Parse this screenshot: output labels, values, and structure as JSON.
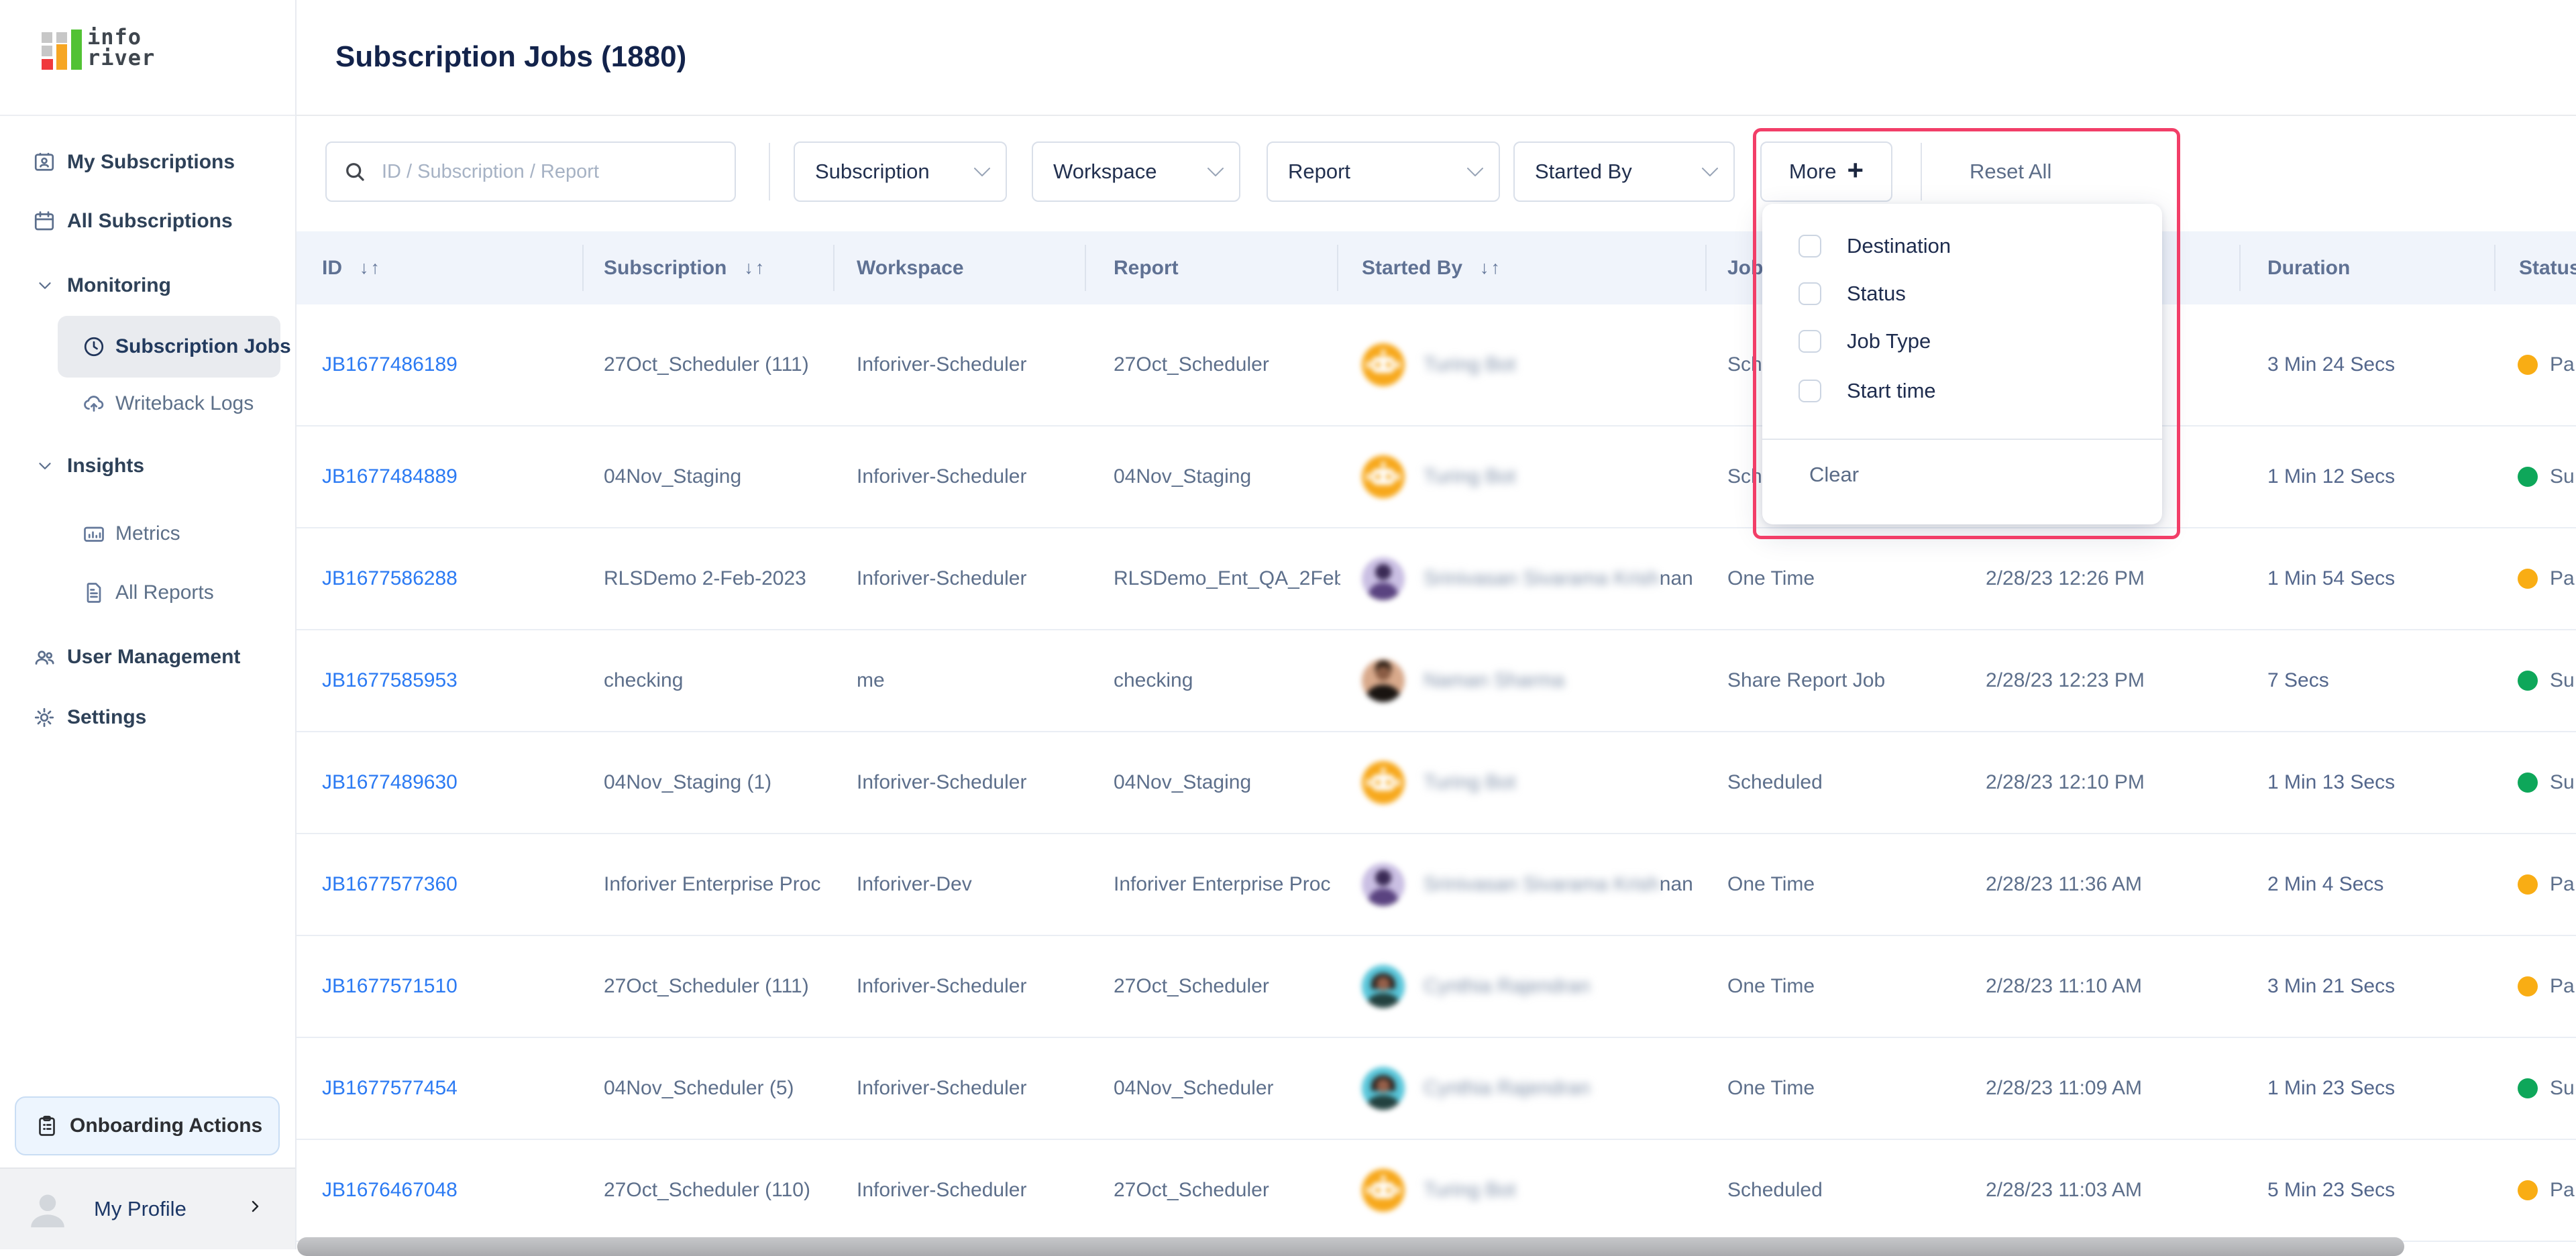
{
  "sidebar": {
    "logo": {
      "line1": "info",
      "line2": "river"
    },
    "items": [
      {
        "label": "My Subscriptions",
        "icon": "idcard",
        "level": "top",
        "selected": false
      },
      {
        "label": "All Subscriptions",
        "icon": "cal",
        "level": "top",
        "selected": false
      },
      {
        "label": "Monitoring",
        "icon": "chev",
        "level": "group",
        "selected": false
      },
      {
        "label": "Subscription Jobs",
        "icon": "clock",
        "level": "sub",
        "selected": true
      },
      {
        "label": "Writeback Logs",
        "icon": "cloud",
        "level": "sub",
        "selected": false
      },
      {
        "label": "Insights",
        "icon": "chev",
        "level": "group",
        "selected": false
      },
      {
        "label": "Metrics",
        "icon": "chart",
        "level": "sub",
        "selected": false
      },
      {
        "label": "All Reports",
        "icon": "doc",
        "level": "sub",
        "selected": false
      },
      {
        "label": "User Management",
        "icon": "users",
        "level": "top",
        "selected": false
      },
      {
        "label": "Settings",
        "icon": "gear",
        "level": "top",
        "selected": false
      }
    ],
    "onboarding_label": "Onboarding Actions",
    "profile_label": "My Profile"
  },
  "header": {
    "title": "Subscription Jobs (1880)"
  },
  "filters": {
    "search_placeholder": "ID / Subscription / Report",
    "dropdowns": [
      "Subscription",
      "Workspace",
      "Report",
      "Started By"
    ],
    "more_label": "More",
    "more_plus": "+",
    "reset_label": "Reset All"
  },
  "more_menu": {
    "options": [
      {
        "label": "Destination",
        "checked": false
      },
      {
        "label": "Status",
        "checked": false
      },
      {
        "label": "Job Type",
        "checked": false
      },
      {
        "label": "Start time",
        "checked": false
      }
    ],
    "clear_label": "Clear"
  },
  "table": {
    "sort_icon": "↓↑",
    "columns": [
      {
        "label": "ID",
        "sortable": true
      },
      {
        "label": "Subscription",
        "sortable": true
      },
      {
        "label": "Workspace",
        "sortable": false
      },
      {
        "label": "Report",
        "sortable": false
      },
      {
        "label": "Started By",
        "sortable": true
      },
      {
        "label": "Job Type",
        "sortable": false
      },
      {
        "label": "",
        "sortable": false
      },
      {
        "label": "Duration",
        "sortable": false
      },
      {
        "label": "Status",
        "sortable": false
      }
    ],
    "rows": [
      {
        "id": "JB1677486189",
        "subscription": "27Oct_Scheduler (111)",
        "workspace": "Inforiver-Scheduler",
        "report": "27Oct_Scheduler",
        "started_by": {
          "name": "Turing Bot",
          "name_tail": "",
          "avatar": "bot"
        },
        "job_type": "Scheduled",
        "start_time": "",
        "duration": "3 Min 24 Secs",
        "status": {
          "label": "Pa",
          "color": "#F9AD14"
        }
      },
      {
        "id": "JB1677484889",
        "subscription": "04Nov_Staging",
        "workspace": "Inforiver-Scheduler",
        "report": "04Nov_Staging",
        "started_by": {
          "name": "Turing Bot",
          "name_tail": "",
          "avatar": "bot"
        },
        "job_type": "Scheduled",
        "start_time": "",
        "duration": "1 Min 12 Secs",
        "status": {
          "label": "Su",
          "color": "#0EA75A"
        }
      },
      {
        "id": "JB1677586288",
        "subscription": "RLSDemo 2-Feb-2023",
        "workspace": "Inforiver-Scheduler",
        "report": "RLSDemo_Ent_QA_2Feb",
        "started_by": {
          "name": "Srinivasan Sivarama Krish",
          "name_tail": "nan",
          "avatar": "purple"
        },
        "job_type": "One Time",
        "start_time": "2/28/23 12:26 PM",
        "duration": "1 Min 54 Secs",
        "status": {
          "label": "Pa",
          "color": "#F9AD14"
        }
      },
      {
        "id": "JB1677585953",
        "subscription": "checking",
        "workspace": "me",
        "report": "checking",
        "started_by": {
          "name": "Naman Sharma",
          "name_tail": "",
          "avatar": "naman"
        },
        "job_type": "Share Report Job",
        "start_time": "2/28/23 12:23 PM",
        "duration": "7 Secs",
        "status": {
          "label": "Su",
          "color": "#0EA75A"
        }
      },
      {
        "id": "JB1677489630",
        "subscription": "04Nov_Staging (1)",
        "workspace": "Inforiver-Scheduler",
        "report": "04Nov_Staging",
        "started_by": {
          "name": "Turing Bot",
          "name_tail": "",
          "avatar": "bot"
        },
        "job_type": "Scheduled",
        "start_time": "2/28/23 12:10 PM",
        "duration": "1 Min 13 Secs",
        "status": {
          "label": "Su",
          "color": "#0EA75A"
        }
      },
      {
        "id": "JB1677577360",
        "subscription": "Inforiver Enterprise Proc",
        "workspace": "Inforiver-Dev",
        "report": "Inforiver Enterprise Proc",
        "started_by": {
          "name": "Srinivasan Sivarama Krish",
          "name_tail": "nan",
          "avatar": "purple"
        },
        "job_type": "One Time",
        "start_time": "2/28/23 11:36 AM",
        "duration": "2 Min 4 Secs",
        "status": {
          "label": "Pa",
          "color": "#F9AD14"
        }
      },
      {
        "id": "JB1677571510",
        "subscription": "27Oct_Scheduler (111)",
        "workspace": "Inforiver-Scheduler",
        "report": "27Oct_Scheduler",
        "started_by": {
          "name": "Cynthia Rajendran",
          "name_tail": "",
          "avatar": "cynthia"
        },
        "job_type": "One Time",
        "start_time": "2/28/23 11:10 AM",
        "duration": "3 Min 21 Secs",
        "status": {
          "label": "Pa",
          "color": "#F9AD14"
        }
      },
      {
        "id": "JB1677577454",
        "subscription": "04Nov_Scheduler (5)",
        "workspace": "Inforiver-Scheduler",
        "report": "04Nov_Scheduler",
        "started_by": {
          "name": "Cynthia Rajendran",
          "name_tail": "",
          "avatar": "cynthia"
        },
        "job_type": "One Time",
        "start_time": "2/28/23 11:09 AM",
        "duration": "1 Min 23 Secs",
        "status": {
          "label": "Su",
          "color": "#0EA75A"
        }
      },
      {
        "id": "JB1676467048",
        "subscription": "27Oct_Scheduler (110)",
        "workspace": "Inforiver-Scheduler",
        "report": "27Oct_Scheduler",
        "started_by": {
          "name": "Turing Bot",
          "name_tail": "",
          "avatar": "bot"
        },
        "job_type": "Scheduled",
        "start_time": "2/28/23 11:03 AM",
        "duration": "5 Min 23 Secs",
        "status": {
          "label": "Pa",
          "color": "#F9AD14"
        }
      }
    ]
  },
  "colors": {
    "link": "#2B7AF3",
    "status_warning": "#F9AD14",
    "status_success": "#0EA75A",
    "annotation": "#F23E68"
  }
}
